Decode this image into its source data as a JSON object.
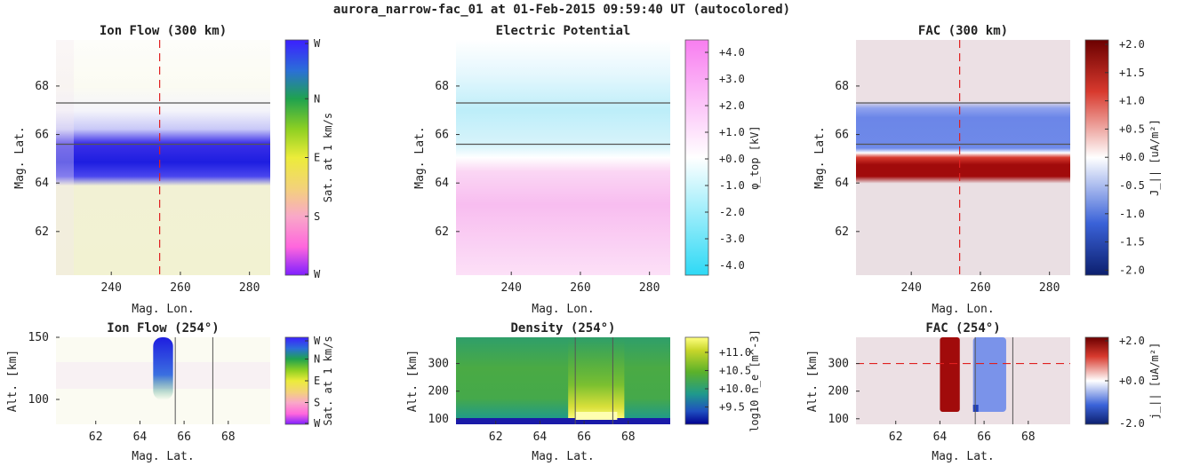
{
  "figure_title": "aurora_narrow-fac_01 at 01-Feb-2015 09:59:40 UT (autocolored)",
  "colors": {
    "flow_wheel": [
      "#7f1fff",
      "#3b1fff",
      "#2b45e8",
      "#1fa24f",
      "#8fd022",
      "#ecec3a",
      "#f3b67a",
      "#ff66dd",
      "#7f1fff"
    ],
    "potential": [
      "#2ed9f5",
      "#ffffff",
      "#f87ef0"
    ],
    "fac": [
      "#0c1f6e",
      "#3a62d8",
      "#ffffff",
      "#d83a2e",
      "#6b0000"
    ],
    "density": [
      "#00008f",
      "#1f4fc0",
      "#1f9a8c",
      "#5bb12a",
      "#c8d62a",
      "#ffff80"
    ],
    "cursor_line": "#e02020",
    "boundary_line": "#555555"
  },
  "chart_data": [
    {
      "id": "ion-flow-300",
      "type": "heatmap",
      "title": "Ion Flow (300 km)",
      "xlabel": "Mag. Lon.",
      "ylabel": "Mag. Lat.",
      "xlim": [
        224,
        286
      ],
      "ylim": [
        60.2,
        69.9
      ],
      "xticks": [
        240,
        260,
        280
      ],
      "yticks": [
        62,
        64,
        66,
        68
      ],
      "colorbar": {
        "label": "Sat. at 1 km/s",
        "ticks": [
          "W",
          "N",
          "E",
          "S",
          "W"
        ]
      },
      "bands": [
        {
          "lat_range": [
            64.5,
            65.5
          ],
          "value": "W",
          "strength": 1.0
        },
        {
          "lat_range": [
            65.5,
            66.5
          ],
          "value": "W",
          "strength": 0.25
        },
        {
          "lat_range": [
            60.2,
            64.5
          ],
          "value": "E",
          "strength": 0.25
        }
      ],
      "vline_x": 254,
      "hlines_y": [
        67.3,
        65.6
      ]
    },
    {
      "id": "potential",
      "type": "heatmap",
      "title": "Electric Potential",
      "xlabel": "Mag. Lon.",
      "ylabel": "Mag. Lat.",
      "xlim": [
        224,
        286
      ],
      "ylim": [
        60.2,
        69.9
      ],
      "xticks": [
        240,
        260,
        280
      ],
      "yticks": [
        62,
        64,
        66,
        68
      ],
      "colorbar": {
        "label": "φ_top [kV]",
        "ticks": [
          "+4.0",
          "+3.0",
          "+2.0",
          "+1.0",
          "+0.0",
          "-1.0",
          "-2.0",
          "-3.0",
          "-4.0"
        ]
      },
      "bands": [
        {
          "lat_range": [
            66.0,
            69.9
          ],
          "value_kv": -1.2
        },
        {
          "lat_range": [
            60.2,
            64.6
          ],
          "value_kv": 1.5
        }
      ],
      "hlines_y": [
        67.3,
        65.6
      ]
    },
    {
      "id": "fac-300",
      "type": "heatmap",
      "title": "FAC (300 km)",
      "xlabel": "Mag. Lon.",
      "ylabel": "Mag. Lat.",
      "xlim": [
        224,
        286
      ],
      "ylim": [
        60.2,
        69.9
      ],
      "xticks": [
        240,
        260,
        280
      ],
      "yticks": [
        62,
        64,
        66,
        68
      ],
      "colorbar": {
        "label": "J_|| [uA/m²]",
        "ticks": [
          "+2.0",
          "+1.5",
          "+1.0",
          "+0.5",
          "+0.0",
          "-0.5",
          "-1.0",
          "-1.5",
          "-2.0"
        ]
      },
      "bands": [
        {
          "lat_range": [
            64.4,
            65.4
          ],
          "value": 2.0
        },
        {
          "lat_range": [
            65.4,
            67.2
          ],
          "value": -1.1
        }
      ],
      "vline_x": 254,
      "hlines_y": [
        67.3,
        65.6
      ]
    },
    {
      "id": "ion-flow-254",
      "type": "heatmap",
      "title": "Ion Flow (254°)",
      "xlabel": "Mag. Lat.",
      "ylabel": "Alt. [km]",
      "xlim": [
        60.2,
        69.9
      ],
      "ylim": [
        80,
        150
      ],
      "xticks": [
        62,
        64,
        66,
        68
      ],
      "yticks": [
        100,
        150
      ],
      "colorbar": {
        "label": "Sat. at 1 km/s",
        "ticks": [
          "W",
          "N",
          "E",
          "S",
          "W"
        ]
      },
      "vlines_x": [
        65.6,
        67.3
      ]
    },
    {
      "id": "density-254",
      "type": "heatmap",
      "title": "Density (254°)",
      "xlabel": "Mag. Lat.",
      "ylabel": "Alt. [km]",
      "xlim": [
        60.2,
        69.9
      ],
      "ylim": [
        80,
        395
      ],
      "xticks": [
        62,
        64,
        66,
        68
      ],
      "yticks": [
        100,
        200,
        300
      ],
      "colorbar": {
        "label": "log10 n_e [m^-3]",
        "ticks": [
          "+11.0",
          "+10.5",
          "+10.0",
          "+9.5"
        ]
      },
      "vlines_x": [
        65.6,
        67.3
      ]
    },
    {
      "id": "fac-254",
      "type": "heatmap",
      "title": "FAC (254°)",
      "xlabel": "Mag. Lat.",
      "ylabel": "Alt. [km]",
      "xlim": [
        60.2,
        69.9
      ],
      "ylim": [
        80,
        395
      ],
      "xticks": [
        62,
        64,
        66,
        68
      ],
      "yticks": [
        100,
        200,
        300
      ],
      "colorbar": {
        "label": "j_|| [uA/m²]",
        "ticks": [
          "+2.0",
          "+0.0",
          "-2.0"
        ]
      },
      "hline_y": 300,
      "vlines_x": [
        65.6,
        67.3
      ]
    }
  ]
}
